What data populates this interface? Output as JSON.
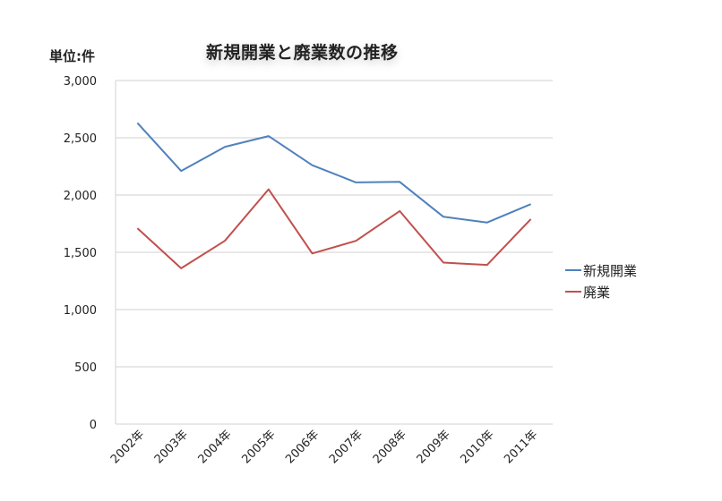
{
  "chart_data": {
    "type": "line",
    "title": "新規開業と廃業数の推移",
    "unit_label": "単位:件",
    "xlabel": "",
    "ylabel": "単位:件",
    "categories": [
      "2002年",
      "2003年",
      "2004年",
      "2005年",
      "2006年",
      "2007年",
      "2008年",
      "2009年",
      "2010年",
      "2011年"
    ],
    "series": [
      {
        "name": "新規開業",
        "color": "#4f81bd",
        "values": [
          2630,
          2210,
          2420,
          2515,
          2260,
          2110,
          2115,
          1810,
          1760,
          1920
        ]
      },
      {
        "name": "廃業",
        "color": "#c0504d",
        "values": [
          1710,
          1360,
          1600,
          2050,
          1490,
          1600,
          1860,
          1410,
          1390,
          1790
        ]
      }
    ],
    "yticks": [
      "0",
      "500",
      "1,000",
      "1,500",
      "2,000",
      "2,500",
      "3,000"
    ],
    "ylim": [
      0,
      3000
    ],
    "grid": true,
    "legend_position": "right"
  }
}
